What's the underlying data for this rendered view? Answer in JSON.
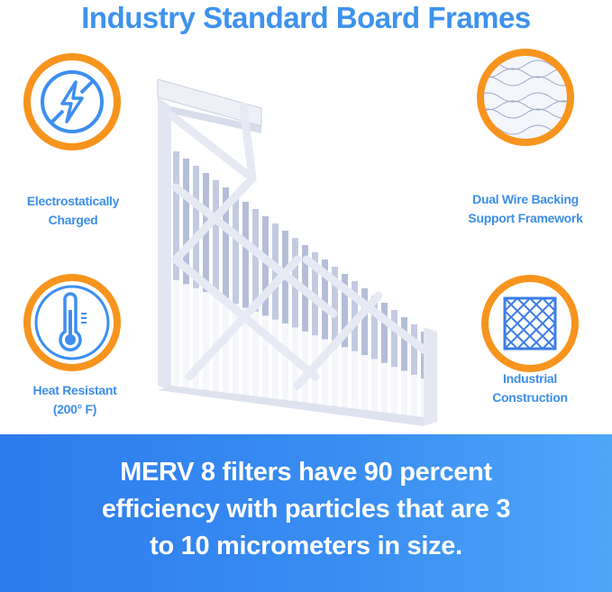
{
  "title": "Industry Standard Board Frames",
  "features": [
    {
      "label_lines": [
        "Electrostatically",
        "Charged"
      ],
      "icon": "no-lightning-icon"
    },
    {
      "label_lines": [
        "Heat Resistant",
        "(200° F)"
      ],
      "icon": "thermometer-icon"
    },
    {
      "label_lines": [
        "Dual Wire Backing",
        "Support Framework"
      ],
      "icon": "wire-mesh-icon"
    },
    {
      "label_lines": [
        "Industrial",
        "Construction"
      ],
      "icon": "diamond-grid-icon"
    }
  ],
  "banner": {
    "lines": [
      "MERV 8 filters have 90 percent",
      "efficiency with particles that are 3",
      "to 10 micrometers in size."
    ]
  },
  "colors": {
    "accent_blue": "#3d92ee",
    "ring_orange": "#f7941d",
    "banner_blue": "#2d7bed"
  }
}
